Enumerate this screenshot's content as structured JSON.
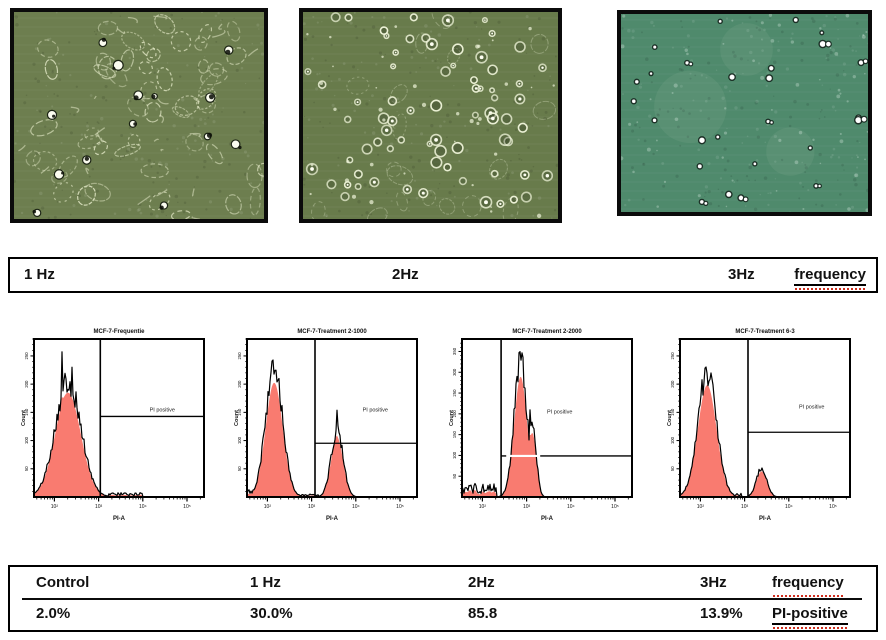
{
  "frequency_bar": {
    "label_1": "1 Hz",
    "label_2": "2Hz",
    "label_3": "3Hz",
    "right_label": "frequency"
  },
  "table": {
    "header": {
      "col1": "Control",
      "col2": "1 Hz",
      "col3": "2Hz",
      "col4": "3Hz",
      "col5": "frequency"
    },
    "values": {
      "col1": "2.0%",
      "col2": "30.0%",
      "col3": "85.8",
      "col4": "13.9%",
      "col5": "PI-positive"
    }
  },
  "micro_panels": [
    {
      "style": "adherent",
      "bg": "#6d7e4f",
      "ink": "#e9eecd"
    },
    {
      "style": "rounded",
      "bg": "#687b4b",
      "ink": "#eef3d8"
    },
    {
      "style": "sparse",
      "bg": "#4f8a6c",
      "ink": "#f2fbf5"
    }
  ],
  "chart_data": [
    {
      "type": "histogram",
      "title": "MCF-7-Frequentie",
      "xlabel": "PI-A",
      "ylabel": "Count",
      "x_scale": "log",
      "xticks": [
        "10²",
        "10³",
        "10⁴",
        "10⁵"
      ],
      "yticks": [
        "50",
        "100",
        "150",
        "200",
        "250"
      ],
      "gate": {
        "x": 0.39,
        "y": 0.51,
        "label": "PI positive",
        "label_x": 0.68,
        "label_y": 0.46
      },
      "envelope_peaks": [
        {
          "c": 0.2,
          "s": 0.075,
          "h": 0.8
        }
      ],
      "spikes": [
        {
          "x": 0.165,
          "h": 1.0
        },
        {
          "x": 0.225,
          "h": 0.92
        }
      ],
      "noise_regions": [
        {
          "from": 0.44,
          "to": 0.64,
          "amp": 0.03
        }
      ]
    },
    {
      "type": "histogram",
      "title": "MCF-7-Treatment 2-1000",
      "xlabel": "PI-A",
      "ylabel": "Count",
      "x_scale": "log",
      "xticks": [
        "10²",
        "10³",
        "10⁴",
        "10⁵"
      ],
      "yticks": [
        "50",
        "100",
        "150",
        "200",
        "250"
      ],
      "gate": {
        "x": 0.4,
        "y": 0.34,
        "label": "PI positive",
        "label_x": 0.68,
        "label_y": 0.46
      },
      "envelope_peaks": [
        {
          "c": 0.16,
          "s": 0.05,
          "h": 0.88
        },
        {
          "c": 0.53,
          "s": 0.035,
          "h": 0.46
        }
      ],
      "spikes": [
        {
          "x": 0.155,
          "h": 1.0
        },
        {
          "x": 0.53,
          "h": 0.6
        }
      ],
      "noise_regions": [
        {
          "from": 0.0,
          "to": 0.07,
          "amp": 0.05
        },
        {
          "from": 0.3,
          "to": 0.42,
          "amp": 0.02
        }
      ]
    },
    {
      "type": "histogram",
      "title": "MCF-7-Treatment 2-2000",
      "xlabel": "PI-A",
      "ylabel": "Count",
      "x_scale": "log",
      "xticks": [
        "10²",
        "10³",
        "10⁴",
        "10⁵"
      ],
      "yticks": [
        "50",
        "100",
        "150",
        "200",
        "250",
        "300",
        "350"
      ],
      "gate": {
        "x": 0.23,
        "y": 0.26,
        "label": "PI positive",
        "label_x": 0.5,
        "label_y": 0.47,
        "white_cross": [
          0.26,
          0.46
        ]
      },
      "envelope_peaks": [
        {
          "c": 0.345,
          "s": 0.038,
          "h": 0.93
        },
        {
          "c": 0.415,
          "s": 0.022,
          "h": 0.5
        }
      ],
      "spikes": [
        {
          "x": 0.34,
          "h": 1.02
        },
        {
          "x": 0.4,
          "h": 0.6
        }
      ],
      "noise_regions": [
        {
          "from": 0.0,
          "to": 0.2,
          "amp": 0.1
        }
      ]
    },
    {
      "type": "histogram",
      "title": "MCF-7-Treatment 6-3",
      "xlabel": "PI-A",
      "ylabel": "Count",
      "x_scale": "log",
      "xticks": [
        "10²",
        "10³",
        "10⁴",
        "10⁵"
      ],
      "yticks": [
        "50",
        "100",
        "150",
        "200",
        "250"
      ],
      "gate": {
        "x": 0.4,
        "y": 0.41,
        "label": "PI positive",
        "label_x": 0.7,
        "label_y": 0.44
      },
      "envelope_peaks": [
        {
          "c": 0.16,
          "s": 0.055,
          "h": 0.86
        },
        {
          "c": 0.48,
          "s": 0.03,
          "h": 0.2
        }
      ],
      "spikes": [
        {
          "x": 0.15,
          "h": 1.0
        },
        {
          "x": 0.185,
          "h": 0.94
        }
      ],
      "noise_regions": [
        {
          "from": 0.26,
          "to": 0.36,
          "amp": 0.025
        }
      ]
    }
  ],
  "colors": {
    "histogram_fill": "#f97b70",
    "histogram_outline": "#000000",
    "frame_border": "#0b0b0b",
    "squiggle_underline": "#cf2e1e",
    "text": "#111111"
  }
}
